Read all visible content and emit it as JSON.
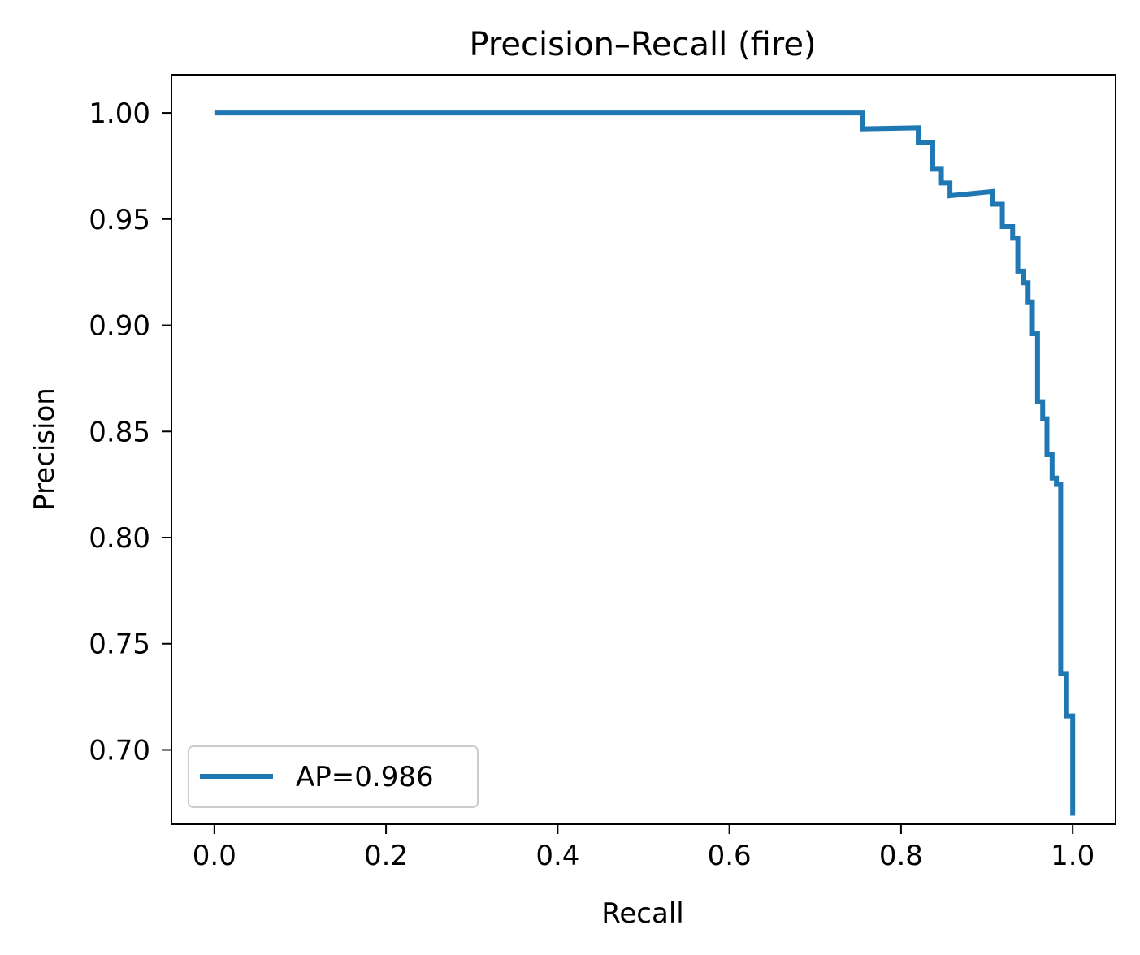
{
  "chart_data": {
    "type": "line",
    "title": "Precision–Recall (fire)",
    "xlabel": "Recall",
    "ylabel": "Precision",
    "xlim": [
      -0.05,
      1.05
    ],
    "ylim": [
      0.665,
      1.018
    ],
    "x_ticks": [
      0.0,
      0.2,
      0.4,
      0.6,
      0.8,
      1.0
    ],
    "x_tick_labels": [
      "0.0",
      "0.2",
      "0.4",
      "0.6",
      "0.8",
      "1.0"
    ],
    "y_ticks": [
      0.7,
      0.75,
      0.8,
      0.85,
      0.9,
      0.95,
      1.0
    ],
    "y_tick_labels": [
      "0.70",
      "0.75",
      "0.80",
      "0.85",
      "0.90",
      "0.95",
      "1.00"
    ],
    "grid": false,
    "legend": {
      "placement": "bottom-left"
    },
    "colors": {
      "series": "#1f77b4"
    },
    "series": [
      {
        "name": "AP=0.986",
        "x": [
          0.0,
          0.755,
          0.755,
          0.82,
          0.82,
          0.837,
          0.837,
          0.847,
          0.847,
          0.857,
          0.857,
          0.907,
          0.907,
          0.918,
          0.918,
          0.93,
          0.93,
          0.936,
          0.936,
          0.943,
          0.943,
          0.948,
          0.948,
          0.953,
          0.953,
          0.959,
          0.959,
          0.965,
          0.965,
          0.97,
          0.97,
          0.976,
          0.976,
          0.981,
          0.981,
          0.986,
          0.986,
          0.993,
          0.993,
          1.0,
          1.0
        ],
        "y": [
          1.0,
          1.0,
          0.9925,
          0.993,
          0.986,
          0.986,
          0.9735,
          0.9735,
          0.967,
          0.967,
          0.961,
          0.963,
          0.957,
          0.957,
          0.9465,
          0.9465,
          0.941,
          0.941,
          0.9255,
          0.9255,
          0.92,
          0.92,
          0.911,
          0.911,
          0.896,
          0.896,
          0.864,
          0.864,
          0.856,
          0.856,
          0.839,
          0.839,
          0.828,
          0.828,
          0.825,
          0.825,
          0.736,
          0.736,
          0.716,
          0.716,
          0.669
        ]
      }
    ]
  }
}
